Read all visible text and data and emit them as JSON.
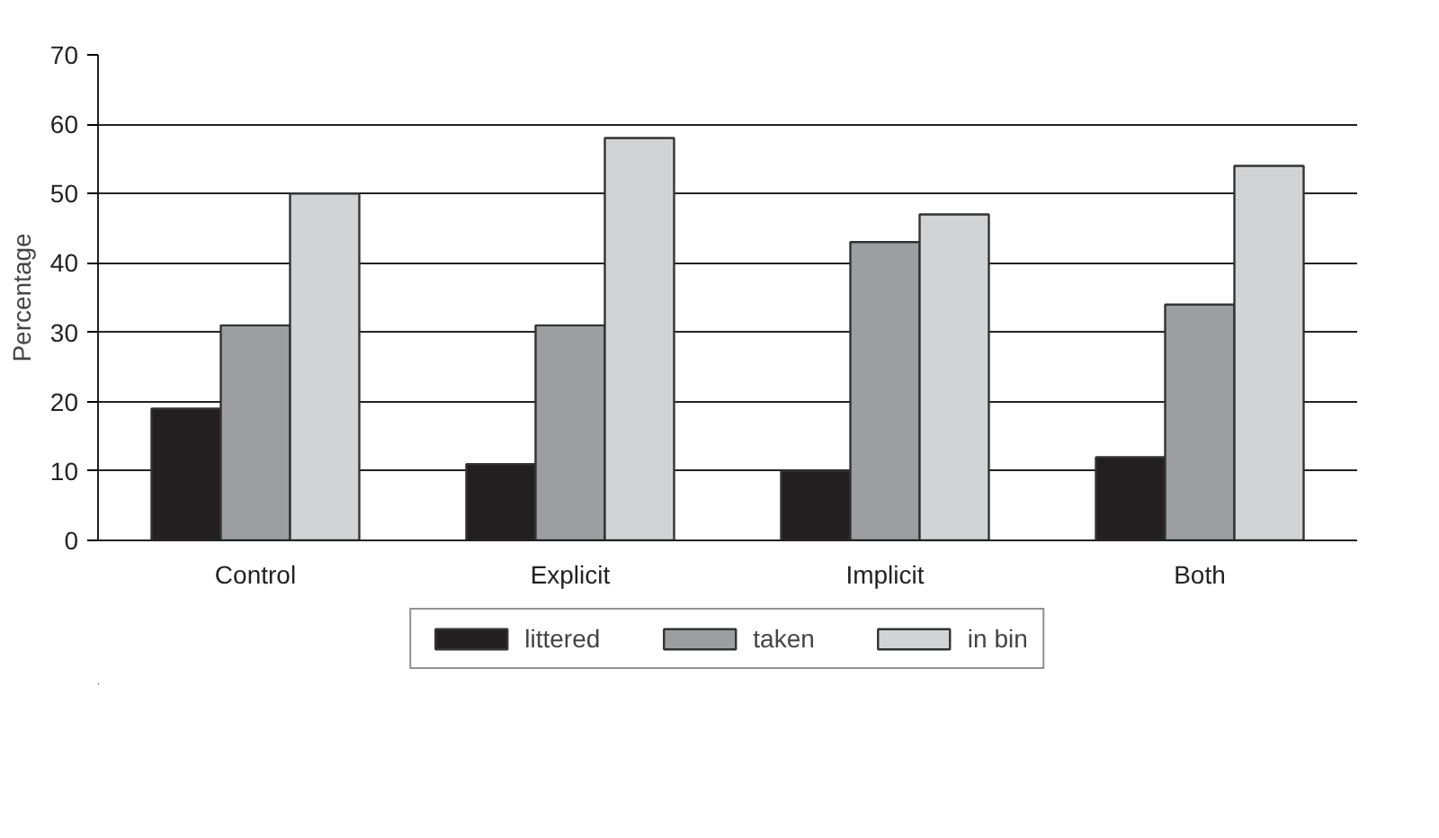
{
  "chart_data": {
    "type": "bar",
    "ylabel": "Percentage",
    "categories": [
      "Control",
      "Explicit",
      "Implicit",
      "Both"
    ],
    "series": [
      {
        "name": "littered",
        "color": "#231f20",
        "values": [
          19,
          11,
          10,
          12
        ]
      },
      {
        "name": "taken",
        "color": "#9d9ea2",
        "values": [
          31,
          31,
          43,
          34
        ]
      },
      {
        "name": "in bin",
        "color": "#d2d3d5",
        "values": [
          50,
          58,
          47,
          54
        ]
      }
    ],
    "ylim": [
      0,
      70
    ],
    "yticks": [
      0,
      10,
      20,
      30,
      40,
      50,
      60,
      70
    ],
    "grid": "y",
    "legend": "bottom"
  }
}
